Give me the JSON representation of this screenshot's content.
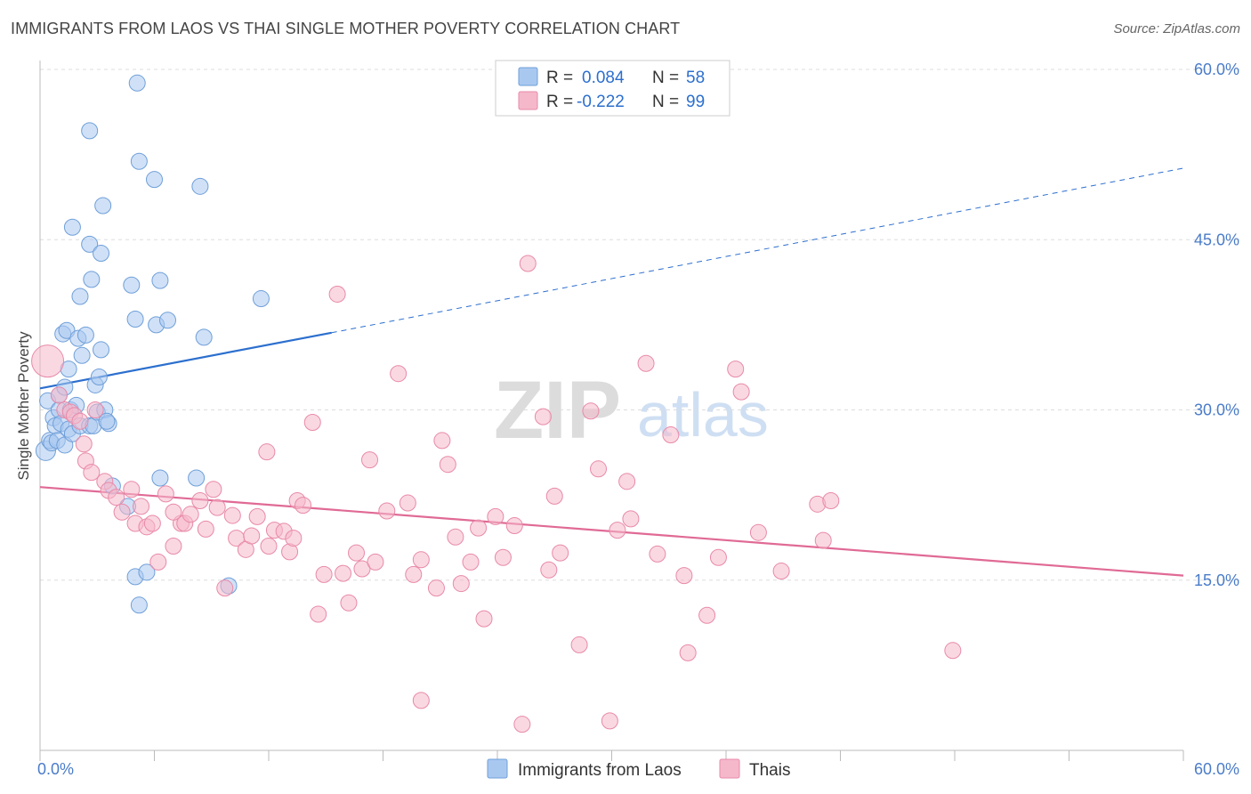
{
  "header": {
    "title": "IMMIGRANTS FROM LAOS VS THAI SINGLE MOTHER POVERTY CORRELATION CHART",
    "source": "Source: ZipAtlas.com"
  },
  "watermark": {
    "zip": "ZIP",
    "atlas": "atlas"
  },
  "legend_box": {
    "r_label": "R =",
    "n_label": "N =",
    "rows": [
      {
        "r": "0.084",
        "n": "58"
      },
      {
        "r": "-0.222",
        "n": "99"
      }
    ]
  },
  "colors": {
    "blue_fill": "#a9c8f0",
    "blue_stroke": "#6f9fd9",
    "blue_line": "#2c6fce",
    "pink_fill": "#f5b8cb",
    "pink_stroke": "#e88aa8",
    "pink_line": "#e06a95",
    "tick_label": "#4a7cc9",
    "grid": "#dddddd",
    "axis_text": "#444444"
  },
  "chart_data": {
    "type": "scatter",
    "title": "IMMIGRANTS FROM LAOS VS THAI SINGLE MOTHER POVERTY CORRELATION CHART",
    "xlabel": "",
    "ylabel": "Single Mother Poverty",
    "xlim": [
      0,
      60
    ],
    "ylim": [
      0,
      60
    ],
    "x_tick_labels": {
      "min": "0.0%",
      "max": "60.0%"
    },
    "y_ticks": [
      {
        "value": 15,
        "label": "15.0%"
      },
      {
        "value": 30,
        "label": "30.0%"
      },
      {
        "value": 45,
        "label": "45.0%"
      },
      {
        "value": 60,
        "label": "60.0%"
      }
    ],
    "grid": true,
    "legend": "bottom-center",
    "series": [
      {
        "name": "Immigrants from Laos",
        "color": "blue",
        "R": 0.084,
        "N": 58,
        "trend": {
          "x0": 0,
          "y0": 31.9,
          "x1": 15.3,
          "y1": 36.8,
          "dashed_to_x": 60,
          "dashed_to_y": 51.3
        },
        "points": [
          [
            0.3,
            26.4
          ],
          [
            0.4,
            30.8
          ],
          [
            0.5,
            27.3
          ],
          [
            0.6,
            27.1
          ],
          [
            0.7,
            29.3
          ],
          [
            0.8,
            28.6
          ],
          [
            0.9,
            27.3
          ],
          [
            1.0,
            30.0
          ],
          [
            1.0,
            31.3
          ],
          [
            1.1,
            28.8
          ],
          [
            1.2,
            36.7
          ],
          [
            1.3,
            26.9
          ],
          [
            1.4,
            37.0
          ],
          [
            1.5,
            33.6
          ],
          [
            1.5,
            28.3
          ],
          [
            1.6,
            30.0
          ],
          [
            1.7,
            27.9
          ],
          [
            1.9,
            30.4
          ],
          [
            2.0,
            36.3
          ],
          [
            2.1,
            28.6
          ],
          [
            2.2,
            34.8
          ],
          [
            2.4,
            36.6
          ],
          [
            2.6,
            28.6
          ],
          [
            2.8,
            28.6
          ],
          [
            2.9,
            32.2
          ],
          [
            3.0,
            29.8
          ],
          [
            3.1,
            32.9
          ],
          [
            3.2,
            35.3
          ],
          [
            3.4,
            30.0
          ],
          [
            3.6,
            28.8
          ],
          [
            1.7,
            46.1
          ],
          [
            2.1,
            40.0
          ],
          [
            2.6,
            54.6
          ],
          [
            2.6,
            44.6
          ],
          [
            2.7,
            41.5
          ],
          [
            3.2,
            43.8
          ],
          [
            3.3,
            48.0
          ],
          [
            4.8,
            41.0
          ],
          [
            5.0,
            38.0
          ],
          [
            5.1,
            58.8
          ],
          [
            5.2,
            51.9
          ],
          [
            6.0,
            50.3
          ],
          [
            6.1,
            37.5
          ],
          [
            6.3,
            41.4
          ],
          [
            6.7,
            37.9
          ],
          [
            8.4,
            49.7
          ],
          [
            8.6,
            36.4
          ],
          [
            11.6,
            39.8
          ],
          [
            3.8,
            23.3
          ],
          [
            4.6,
            21.5
          ],
          [
            5.0,
            15.3
          ],
          [
            5.2,
            12.8
          ],
          [
            5.6,
            15.7
          ],
          [
            6.3,
            24.0
          ],
          [
            8.2,
            24.0
          ],
          [
            9.9,
            14.5
          ],
          [
            3.5,
            29.0
          ],
          [
            1.3,
            32.0
          ]
        ]
      },
      {
        "name": "Thais",
        "color": "pink",
        "R": -0.222,
        "N": 99,
        "trend": {
          "x0": 0,
          "y0": 23.2,
          "x1": 60,
          "y1": 15.4
        },
        "points": [
          [
            0.4,
            34.3
          ],
          [
            1.0,
            31.3
          ],
          [
            1.3,
            30.0
          ],
          [
            1.6,
            29.8
          ],
          [
            1.8,
            29.5
          ],
          [
            2.1,
            29.0
          ],
          [
            2.3,
            27.0
          ],
          [
            2.4,
            25.5
          ],
          [
            2.7,
            24.5
          ],
          [
            2.9,
            30.0
          ],
          [
            3.4,
            23.7
          ],
          [
            3.6,
            22.9
          ],
          [
            4.0,
            22.3
          ],
          [
            4.3,
            21.0
          ],
          [
            4.8,
            23.0
          ],
          [
            5.0,
            20.0
          ],
          [
            5.3,
            21.5
          ],
          [
            5.6,
            19.7
          ],
          [
            5.9,
            20.0
          ],
          [
            6.2,
            16.6
          ],
          [
            6.6,
            22.6
          ],
          [
            7.0,
            18.0
          ],
          [
            7.4,
            20.0
          ],
          [
            7.6,
            20.0
          ],
          [
            7.9,
            20.8
          ],
          [
            8.4,
            22.0
          ],
          [
            8.7,
            19.5
          ],
          [
            9.1,
            23.0
          ],
          [
            9.3,
            21.4
          ],
          [
            9.7,
            14.3
          ],
          [
            10.1,
            20.7
          ],
          [
            10.3,
            18.7
          ],
          [
            10.8,
            17.7
          ],
          [
            11.1,
            18.9
          ],
          [
            11.4,
            20.6
          ],
          [
            11.9,
            26.3
          ],
          [
            12.3,
            19.4
          ],
          [
            12.8,
            19.3
          ],
          [
            13.1,
            17.5
          ],
          [
            13.3,
            18.7
          ],
          [
            13.5,
            22.0
          ],
          [
            13.8,
            21.6
          ],
          [
            14.3,
            28.9
          ],
          [
            14.6,
            12.0
          ],
          [
            14.9,
            15.5
          ],
          [
            15.6,
            40.2
          ],
          [
            15.9,
            15.6
          ],
          [
            16.2,
            13.0
          ],
          [
            16.6,
            17.4
          ],
          [
            16.9,
            16.0
          ],
          [
            17.3,
            25.6
          ],
          [
            17.6,
            16.6
          ],
          [
            18.2,
            21.1
          ],
          [
            18.8,
            33.2
          ],
          [
            19.3,
            21.8
          ],
          [
            19.6,
            15.5
          ],
          [
            20.0,
            16.8
          ],
          [
            20.8,
            14.3
          ],
          [
            21.1,
            27.3
          ],
          [
            21.4,
            25.2
          ],
          [
            21.8,
            18.8
          ],
          [
            22.1,
            14.7
          ],
          [
            22.6,
            16.6
          ],
          [
            23.0,
            19.6
          ],
          [
            23.3,
            11.6
          ],
          [
            23.9,
            20.6
          ],
          [
            24.3,
            17.0
          ],
          [
            24.9,
            19.8
          ],
          [
            25.3,
            2.3
          ],
          [
            25.6,
            42.9
          ],
          [
            26.4,
            29.4
          ],
          [
            26.7,
            15.9
          ],
          [
            27.0,
            22.4
          ],
          [
            27.3,
            17.4
          ],
          [
            28.3,
            9.3
          ],
          [
            28.9,
            29.9
          ],
          [
            29.3,
            24.8
          ],
          [
            29.9,
            2.6
          ],
          [
            30.3,
            19.4
          ],
          [
            30.8,
            23.7
          ],
          [
            31.0,
            20.4
          ],
          [
            31.8,
            34.1
          ],
          [
            32.4,
            17.3
          ],
          [
            33.1,
            27.8
          ],
          [
            33.8,
            15.4
          ],
          [
            34.0,
            8.6
          ],
          [
            35.0,
            11.9
          ],
          [
            35.6,
            17.0
          ],
          [
            36.5,
            33.6
          ],
          [
            36.8,
            31.6
          ],
          [
            37.7,
            19.2
          ],
          [
            38.9,
            15.8
          ],
          [
            40.8,
            21.7
          ],
          [
            41.1,
            18.5
          ],
          [
            41.5,
            22.0
          ],
          [
            47.9,
            8.8
          ],
          [
            20.0,
            4.4
          ],
          [
            12.0,
            18.0
          ],
          [
            7.0,
            21.0
          ]
        ]
      }
    ]
  },
  "bottom_legend": [
    {
      "label": "Immigrants from Laos",
      "color": "blue"
    },
    {
      "label": "Thais",
      "color": "pink"
    }
  ]
}
